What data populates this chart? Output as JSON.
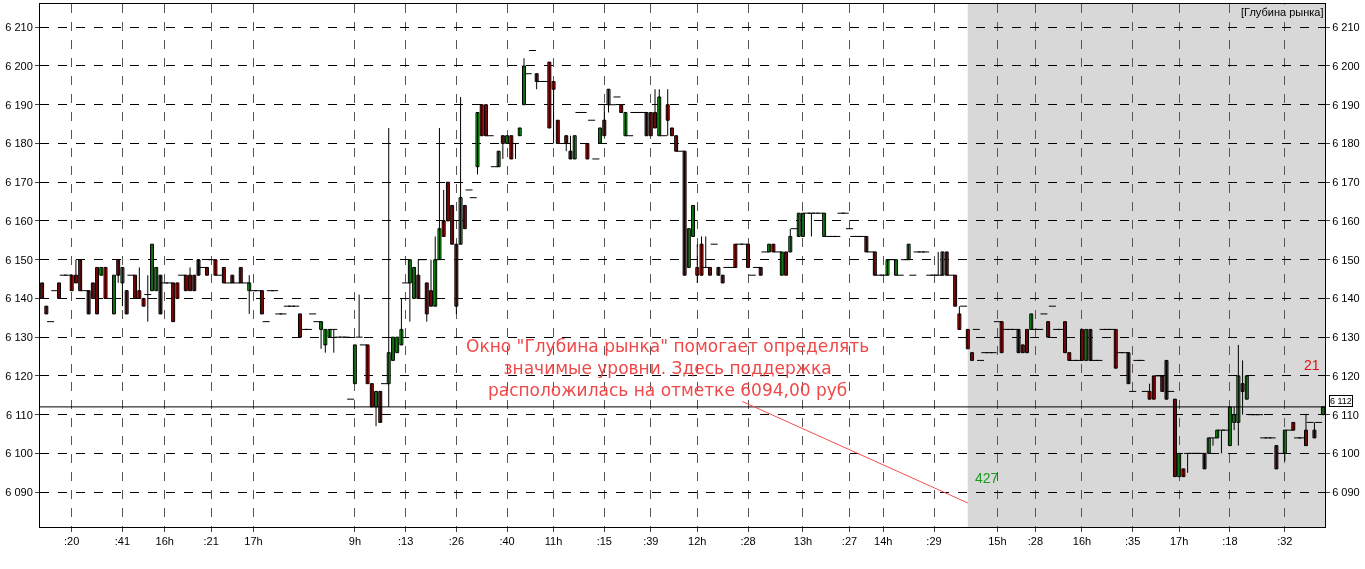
{
  "chart_data": {
    "type": "candlestick",
    "title": "[Глубина рынка]",
    "categories": [
      null,
      null,
      null,
      null,
      null,
      null,
      null,
      ":20",
      null,
      null,
      null,
      null,
      null,
      null,
      null,
      null,
      null,
      null,
      null,
      ":41",
      null,
      null,
      null,
      null,
      null,
      null,
      null,
      null,
      null,
      "16h",
      null,
      null,
      null,
      null,
      null,
      null,
      null,
      null,
      null,
      null,
      ":21",
      null,
      null,
      null,
      null,
      null,
      null,
      null,
      null,
      null,
      "17h",
      null,
      null,
      null,
      null,
      null,
      null,
      null,
      null,
      null,
      null,
      null,
      null,
      null,
      null,
      null,
      null,
      null,
      null,
      null,
      null,
      null,
      null,
      null,
      "9h",
      null,
      null,
      null,
      null,
      null,
      null,
      null,
      null,
      null,
      null,
      null,
      ":13",
      null,
      null,
      null,
      null,
      null,
      null,
      null,
      null,
      null,
      null,
      null,
      ":26",
      null,
      null,
      null,
      null,
      null,
      null,
      null,
      null,
      null,
      null,
      null,
      ":40",
      null,
      null,
      null,
      null,
      null,
      null,
      null,
      null,
      null,
      null,
      "11h",
      null,
      null,
      null,
      null,
      null,
      null,
      null,
      null,
      null,
      null,
      null,
      ":15",
      null,
      null,
      null,
      null,
      null,
      null,
      null,
      null,
      null,
      null,
      ":39",
      null,
      null,
      null,
      null,
      null,
      null,
      null,
      null,
      null,
      null,
      "12h",
      null,
      null,
      null,
      null,
      null,
      null,
      null,
      null,
      null,
      null,
      null,
      ":28",
      null,
      null,
      null,
      null,
      null,
      null,
      null,
      null,
      null,
      null,
      null,
      null,
      "13h",
      null,
      null,
      null,
      null,
      null,
      null,
      null,
      null,
      null,
      null,
      ":27",
      null,
      null,
      null,
      null,
      null,
      null,
      null,
      "14h",
      null,
      null,
      null,
      null,
      null,
      null,
      null,
      null,
      null,
      null,
      null,
      ":29",
      null,
      null,
      null,
      null,
      null,
      null,
      null,
      null,
      null,
      null,
      null,
      null,
      null,
      null,
      "15h",
      null,
      null,
      null,
      null,
      null,
      null,
      null,
      null,
      ":28",
      null,
      null,
      null,
      null,
      null,
      null,
      null,
      null,
      null,
      null,
      "16h",
      null,
      null,
      null,
      null,
      null,
      null,
      null,
      null,
      null,
      null,
      null,
      ":35",
      null,
      null,
      null,
      null,
      null,
      null,
      null,
      null,
      null,
      null,
      "17h",
      null,
      null,
      null,
      null,
      null,
      null,
      null,
      null,
      null,
      null,
      null,
      ":18",
      null,
      null,
      null,
      null,
      null,
      null,
      null,
      null,
      null,
      null,
      null,
      null,
      ":32",
      null,
      null,
      null,
      null,
      null,
      null,
      null,
      null,
      null
    ],
    "series": [
      {
        "color": "#000000",
        "ohlc": [
          [
            6144,
            6144,
            6140,
            6140
          ],
          [
            6138,
            6138,
            6136,
            6136
          ],
          [
            6134,
            6134,
            6134,
            6134
          ],
          [
            6142,
            6142,
            6142,
            6142
          ],
          [
            6144,
            6144,
            6140,
            6140
          ],
          [
            6146,
            6146,
            6146,
            6146
          ],
          [
            6146,
            6146,
            6146,
            6146
          ],
          [
            6146,
            6146,
            6142,
            6142
          ],
          [
            6146,
            6150,
            6144,
            6144
          ],
          [
            6150,
            6150,
            6142,
            6142
          ],
          [
            6142,
            6142,
            6142,
            6142
          ],
          [
            6142,
            6142,
            6136,
            6136
          ],
          [
            6144,
            6144,
            6140,
            6140
          ],
          [
            6148,
            6148,
            6136,
            6136
          ],
          [
            6146,
            6148,
            6146,
            6148
          ],
          [
            6148,
            6148,
            6140,
            6140
          ],
          [
            6140,
            6140,
            6140,
            6140
          ],
          [
            6136,
            6146,
            6136,
            6146
          ],
          [
            6150,
            6150,
            6144,
            6146
          ],
          [
            6144,
            6148,
            6138,
            6148
          ],
          [
            6142,
            6142,
            6136,
            6136
          ],
          [
            6146,
            6146,
            6146,
            6146
          ],
          [
            6146,
            6146,
            6140,
            6140
          ],
          [
            6142,
            6148,
            6140,
            6140
          ],
          [
            6140,
            6140,
            6138,
            6138
          ],
          [
            6141,
            6146,
            6134,
            6141
          ],
          [
            6142,
            6154,
            6142,
            6154
          ],
          [
            6142,
            6148,
            6142,
            6148
          ],
          [
            6146,
            6146,
            6136,
            6136
          ],
          [
            6144,
            6144,
            6144,
            6144
          ],
          [
            6144,
            6144,
            6144,
            6144
          ],
          [
            6144,
            6144,
            6134,
            6134
          ],
          [
            6144,
            6144,
            6140,
            6140
          ],
          [
            6146,
            6146,
            6146,
            6146
          ],
          [
            6146,
            6146,
            6142,
            6142
          ],
          [
            6146,
            6148,
            6142,
            6142
          ],
          [
            6146,
            6146,
            6142,
            6142
          ],
          [
            6150,
            6150,
            6146,
            6146
          ],
          [
            6148,
            6148,
            6148,
            6148
          ],
          [
            6148,
            6148,
            6146,
            6146
          ],
          [
            6150,
            6150,
            6150,
            6150
          ],
          [
            6150,
            6150,
            6146,
            6146
          ],
          [
            6146,
            6146,
            6146,
            6146
          ],
          [
            6148,
            6148,
            6144,
            6144
          ],
          [
            6144,
            6144,
            6144,
            6144
          ],
          [
            6146,
            6146,
            6144,
            6144
          ],
          [
            6144,
            6144,
            6144,
            6144
          ],
          [
            6148,
            6148,
            6144,
            6144
          ],
          [
            6144,
            6144,
            6144,
            6144
          ],
          [
            6142,
            6146,
            6136,
            6144
          ],
          [
            6142,
            6142,
            6142,
            6142
          ],
          [
            6142,
            6142,
            6142,
            6142
          ],
          [
            6142,
            6142,
            6136,
            6136
          ],
          [
            6134,
            6134,
            6134,
            6134
          ],
          [
            6142,
            6142,
            6142,
            6142
          ],
          [
            6142,
            6142,
            6142,
            6142
          ],
          [
            6136,
            6136,
            6136,
            6136
          ],
          [
            6136,
            6136,
            6136,
            6136
          ],
          [
            6138,
            6138,
            6138,
            6138
          ],
          [
            6138,
            6138,
            6138,
            6138
          ],
          [
            6138,
            6138,
            6138,
            6138
          ],
          [
            6136,
            6136,
            6130,
            6130
          ],
          [
            6132,
            6132,
            6132,
            6132
          ],
          [
            6132,
            6132,
            6132,
            6132
          ],
          [
            6136,
            6136,
            6136,
            6136
          ],
          [
            6134,
            6134,
            6134,
            6134
          ],
          [
            6132,
            6134,
            6127,
            6134
          ],
          [
            6128,
            6132,
            6126,
            6132
          ],
          [
            6130,
            6132,
            6130,
            6132
          ],
          [
            6132,
            6132,
            6126,
            6132
          ],
          [
            6130,
            6130,
            6130,
            6130
          ],
          [
            6130,
            6130,
            6130,
            6130
          ],
          [
            6130,
            6130,
            6130,
            6130
          ],
          [
            6114,
            6114,
            6114,
            6114
          ],
          [
            6118,
            6128,
            6118,
            6128
          ],
          [
            6130,
            6141,
            6130,
            6130
          ],
          [
            6128,
            6128,
            6128,
            6128
          ],
          [
            6128,
            6128,
            6118,
            6118
          ],
          [
            6118,
            6118,
            6112,
            6112
          ],
          [
            6112,
            6116,
            6107,
            6116
          ],
          [
            6116,
            6116,
            6108,
            6108
          ],
          [
            6118,
            6118,
            6118,
            6118
          ],
          [
            6118,
            6184,
            6112,
            6126
          ],
          [
            6124,
            6130,
            6124,
            6130
          ],
          [
            6126,
            6130,
            6126,
            6130
          ],
          [
            6128,
            6140,
            6128,
            6132
          ],
          [
            6144,
            6144,
            6144,
            6144
          ],
          [
            6144,
            6150,
            6134,
            6150
          ],
          [
            6140,
            6148,
            6140,
            6148
          ],
          [
            6146,
            6150,
            6140,
            6140
          ],
          [
            6150,
            6150,
            6150,
            6150
          ],
          [
            6144,
            6144,
            6134,
            6136
          ],
          [
            6142,
            6150,
            6138,
            6138
          ],
          [
            6138,
            6156,
            6138,
            6150
          ],
          [
            6150,
            6184,
            6150,
            6158
          ],
          [
            6160,
            6168,
            6156,
            6156
          ],
          [
            6170,
            6170,
            6160,
            6160
          ],
          [
            6164,
            6164,
            6154,
            6154
          ],
          [
            6154,
            6154,
            6136,
            6138
          ],
          [
            6154,
            6192,
            6154,
            6166
          ],
          [
            6164,
            6164,
            6158,
            6158
          ],
          [
            6168,
            6168,
            6168,
            6168
          ],
          [
            6166,
            6166,
            6166,
            6166
          ],
          [
            6174,
            6188,
            6172,
            6188
          ],
          [
            6190,
            6190,
            6182,
            6182
          ],
          [
            6190,
            6190,
            6182,
            6182
          ],
          [
            6182,
            6182,
            6182,
            6182
          ],
          [
            6174,
            6174,
            6174,
            6174
          ],
          [
            6174,
            6178,
            6174,
            6178
          ],
          [
            6182,
            6182,
            6176,
            6180
          ],
          [
            6180,
            6182,
            6180,
            6182
          ],
          [
            6182,
            6182,
            6176,
            6176
          ],
          [
            6180,
            6180,
            6176,
            6180
          ],
          [
            6182,
            6184,
            6182,
            6184
          ],
          [
            6190,
            6202,
            6190,
            6200
          ],
          [
            6198,
            6198,
            6198,
            6198
          ],
          [
            6204,
            6204,
            6204,
            6204
          ],
          [
            6198,
            6198,
            6194,
            6196
          ],
          [
            6196,
            6196,
            6196,
            6196
          ],
          [
            6196,
            6196,
            6196,
            6196
          ],
          [
            6201,
            6201,
            6184,
            6184
          ],
          [
            6196,
            6196,
            6180,
            6194
          ],
          [
            6186,
            6186,
            6180,
            6180
          ],
          [
            6180,
            6180,
            6180,
            6180
          ],
          [
            6182,
            6182,
            6178,
            6180
          ],
          [
            6178,
            6182,
            6176,
            6176
          ],
          [
            6176,
            6182,
            6176,
            6182
          ],
          [
            6188,
            6188,
            6188,
            6188
          ],
          [
            6188,
            6188,
            6188,
            6188
          ],
          [
            6180,
            6180,
            6176,
            6176
          ],
          [
            6186,
            6186,
            6186,
            6186
          ],
          [
            6176,
            6176,
            6176,
            6176
          ],
          [
            6180,
            6184,
            6180,
            6184
          ],
          [
            6186,
            6190,
            6182,
            6182
          ],
          [
            6190,
            6194,
            6188,
            6194
          ],
          [
            6190,
            6190,
            6190,
            6190
          ],
          [
            6192,
            6192,
            6192,
            6192
          ],
          [
            6190,
            6190,
            6188,
            6188
          ],
          [
            6182,
            6188,
            6182,
            6188
          ],
          [
            6182,
            6182,
            6182,
            6182
          ],
          [
            6188,
            6188,
            6188,
            6188
          ],
          [
            6188,
            6188,
            6188,
            6188
          ],
          [
            6188,
            6188,
            6188,
            6188
          ],
          [
            6188,
            6188,
            6182,
            6182
          ],
          [
            6188,
            6188,
            6182,
            6182
          ],
          [
            6188,
            6194,
            6184,
            6184
          ],
          [
            6182,
            6194,
            6182,
            6192
          ],
          [
            6182,
            6182,
            6182,
            6182
          ],
          [
            6190,
            6194,
            6182,
            6186
          ],
          [
            6184,
            6184,
            6182,
            6182
          ],
          [
            6182,
            6182,
            6178,
            6178
          ],
          [
            6178,
            6178,
            6178,
            6178
          ],
          [
            6178,
            6178,
            6146,
            6146
          ],
          [
            6148,
            6158,
            6148,
            6158
          ],
          [
            6156,
            6164,
            6156,
            6164
          ],
          [
            6148,
            6154,
            6144,
            6146
          ],
          [
            6154,
            6156,
            6146,
            6146
          ],
          [
            6148,
            6156,
            6148,
            6148
          ],
          [
            6148,
            6148,
            6146,
            6146
          ],
          [
            6154,
            6154,
            6154,
            6154
          ],
          [
            6148,
            6148,
            6146,
            6146
          ],
          [
            6146,
            6146,
            6144,
            6144
          ],
          [
            6148,
            6148,
            6148,
            6148
          ],
          [
            6148,
            6148,
            6148,
            6148
          ],
          [
            6154,
            6154,
            6148,
            6148
          ],
          [
            6154,
            6154,
            6154,
            6154
          ],
          [
            6154,
            6154,
            6154,
            6154
          ],
          [
            6154,
            6154,
            6148,
            6148
          ],
          [
            6146,
            6146,
            6146,
            6146
          ],
          [
            6148,
            6148,
            6148,
            6148
          ],
          [
            6148,
            6148,
            6146,
            6146
          ],
          [
            6152,
            6152,
            6152,
            6152
          ],
          [
            6152,
            6154,
            6152,
            6154
          ],
          [
            6154,
            6154,
            6152,
            6152
          ],
          [
            6152,
            6152,
            6152,
            6152
          ],
          [
            6146,
            6152,
            6146,
            6152
          ],
          [
            6152,
            6152,
            6146,
            6146
          ],
          [
            6152,
            6158,
            6152,
            6156
          ],
          [
            6158,
            6158,
            6158,
            6158
          ],
          [
            6156,
            6162,
            6156,
            6162
          ],
          [
            6156,
            6162,
            6156,
            6162
          ],
          [
            6162,
            6162,
            6162,
            6162
          ],
          [
            6162,
            6162,
            6156,
            6162
          ],
          [
            6162,
            6162,
            6162,
            6162
          ],
          [
            6162,
            6162,
            6162,
            6162
          ],
          [
            6156,
            6162,
            6156,
            6162
          ],
          [
            6156,
            6156,
            6156,
            6156
          ],
          [
            6156,
            6156,
            6156,
            6156
          ],
          [
            6156,
            6156,
            6156,
            6156
          ],
          [
            6162,
            6162,
            6162,
            6162
          ],
          [
            6162,
            6162,
            6162,
            6162
          ],
          [
            6158,
            6158,
            6158,
            6158
          ],
          [
            6156,
            6156,
            6156,
            6156
          ],
          [
            6156,
            6156,
            6156,
            6156
          ],
          [
            6156,
            6156,
            6156,
            6156
          ],
          [
            6156,
            6156,
            6152,
            6152
          ],
          [
            6152,
            6152,
            6152,
            6152
          ],
          [
            6152,
            6152,
            6146,
            6146
          ],
          [
            6146,
            6146,
            6146,
            6146
          ],
          [
            6146,
            6146,
            6146,
            6146
          ],
          [
            6146,
            6150,
            6146,
            6150
          ],
          [
            6150,
            6150,
            6150,
            6150
          ],
          [
            6146,
            6150,
            6146,
            6150
          ],
          [
            6146,
            6146,
            6146,
            6146
          ],
          [
            6150,
            6150,
            6150,
            6150
          ],
          [
            6150,
            6154,
            6150,
            6154
          ],
          [
            6146,
            6146,
            6146,
            6146
          ],
          [
            6152,
            6152,
            6152,
            6152
          ],
          [
            6152,
            6152,
            6152,
            6152
          ],
          [
            6152,
            6152,
            6152,
            6152
          ],
          [
            6146,
            6146,
            6146,
            6146
          ],
          [
            6146,
            6146,
            6146,
            6146
          ],
          [
            6146,
            6152,
            6146,
            6146
          ],
          [
            6146,
            6152,
            6146,
            6152
          ],
          [
            6152,
            6152,
            6146,
            6146
          ],
          [
            6146,
            6146,
            6146,
            6146
          ],
          [
            6146,
            6146,
            6138,
            6138
          ],
          [
            6136,
            6138,
            6132,
            6132
          ],
          [
            6138,
            6138,
            6138,
            6138
          ],
          [
            6132,
            6132,
            6127,
            6127
          ],
          [
            6126,
            6126,
            6124,
            6124
          ],
          [
            6132,
            6132,
            6132,
            6132
          ],
          [
            6124,
            6124,
            6124,
            6124
          ],
          [
            6126,
            6126,
            6126,
            6126
          ],
          [
            6126,
            6126,
            6126,
            6126
          ],
          [
            6126,
            6126,
            6126,
            6126
          ],
          [
            6134,
            6134,
            6134,
            6134
          ],
          [
            6134,
            6134,
            6126,
            6126
          ],
          [
            6132,
            6132,
            6132,
            6132
          ],
          [
            6132,
            6132,
            6132,
            6132
          ],
          [
            6132,
            6132,
            6132,
            6132
          ],
          [
            6132,
            6132,
            6126,
            6126
          ],
          [
            6128,
            6128,
            6126,
            6126
          ],
          [
            6132,
            6132,
            6126,
            6126
          ],
          [
            6132,
            6136,
            6132,
            6136
          ],
          [
            6132,
            6132,
            6132,
            6132
          ],
          [
            6132,
            6132,
            6132,
            6132
          ],
          [
            6136,
            6136,
            6136,
            6136
          ],
          [
            6134,
            6134,
            6130,
            6130
          ],
          [
            6138,
            6138,
            6138,
            6138
          ],
          [
            6132,
            6132,
            6132,
            6132
          ],
          [
            6132,
            6132,
            6132,
            6132
          ],
          [
            6134,
            6134,
            6126,
            6126
          ],
          [
            6126,
            6126,
            6124,
            6124
          ],
          [
            6124,
            6124,
            6124,
            6124
          ],
          [
            6124,
            6124,
            6124,
            6124
          ],
          [
            6132,
            6132,
            6124,
            6124
          ],
          [
            6124,
            6132,
            6124,
            6132
          ],
          [
            6132,
            6132,
            6124,
            6124
          ],
          [
            6124,
            6124,
            6124,
            6124
          ],
          [
            6124,
            6124,
            6124,
            6124
          ],
          [
            6132,
            6132,
            6132,
            6132
          ],
          [
            6132,
            6132,
            6132,
            6132
          ],
          [
            6132,
            6132,
            6132,
            6132
          ],
          [
            6132,
            6132,
            6122,
            6122
          ],
          [
            6126,
            6126,
            6126,
            6126
          ],
          [
            6126,
            6126,
            6126,
            6126
          ],
          [
            6126,
            6126,
            6118,
            6118
          ],
          [
            6116,
            6116,
            6116,
            6116
          ],
          [
            6124,
            6124,
            6124,
            6124
          ],
          [
            6124,
            6124,
            6124,
            6124
          ],
          [
            6116,
            6116,
            6116,
            6116
          ],
          [
            6116,
            6118,
            6114,
            6114
          ],
          [
            6120,
            6120,
            6114,
            6114
          ],
          [
            6120,
            6120,
            6120,
            6120
          ],
          [
            6120,
            6120,
            6116,
            6116
          ],
          [
            6124,
            6124,
            6114,
            6114
          ],
          [
            6116,
            6116,
            6116,
            6116
          ],
          [
            6114,
            6114,
            6094,
            6094
          ],
          [
            6094,
            6100,
            6094,
            6100
          ],
          [
            6096,
            6096,
            6094,
            6094
          ],
          [
            6100,
            6100,
            6095,
            6100
          ],
          [
            6100,
            6100,
            6100,
            6100
          ],
          [
            6100,
            6100,
            6100,
            6100
          ],
          [
            6100,
            6100,
            6100,
            6100
          ],
          [
            6100,
            6100,
            6096,
            6096
          ],
          [
            6100,
            6104,
            6100,
            6104
          ],
          [
            6104,
            6104,
            6102,
            6104
          ],
          [
            6104,
            6106,
            6104,
            6106
          ],
          [
            6106,
            6106,
            6100,
            6106
          ],
          [
            6106,
            6106,
            6106,
            6106
          ],
          [
            6102,
            6112,
            6102,
            6112
          ],
          [
            6108,
            6112,
            6106,
            6110
          ],
          [
            6108,
            6128,
            6102,
            6120
          ],
          [
            6118,
            6124,
            6110,
            6116
          ],
          [
            6114,
            6120,
            6114,
            6120
          ],
          [
            6110,
            6110,
            6110,
            6110
          ],
          [
            6110,
            6110,
            6110,
            6110
          ],
          [
            6110,
            6110,
            6110,
            6110
          ],
          [
            6104,
            6104,
            6104,
            6104
          ],
          [
            6104,
            6104,
            6104,
            6104
          ],
          [
            6104,
            6104,
            6104,
            6104
          ],
          [
            6102,
            6102,
            6096,
            6096
          ],
          [
            6100,
            6100,
            6100,
            6100
          ],
          [
            6100,
            6106,
            6098,
            6106
          ],
          [
            6106,
            6106,
            6106,
            6106
          ],
          [
            6108,
            6108,
            6106,
            6106
          ],
          [
            6104,
            6104,
            6104,
            6104
          ],
          [
            6104,
            6104,
            6104,
            6104
          ],
          [
            6106,
            6110,
            6102,
            6102
          ],
          [
            6108,
            6108,
            6108,
            6108
          ],
          [
            6106,
            6108,
            6104,
            6104
          ],
          [
            6108,
            6108,
            6108,
            6108
          ],
          [
            6110,
            6112,
            6110,
            6112
          ]
        ]
      }
    ],
    "ylim": [
      6081,
      6216
    ],
    "yticks": [
      {
        "value": 6090,
        "label": "6 090"
      },
      {
        "value": 6100,
        "label": "6 100"
      },
      {
        "value": 6110,
        "label": "6 110"
      },
      {
        "value": 6120,
        "label": "6 120"
      },
      {
        "value": 6130,
        "label": "6 130"
      },
      {
        "value": 6140,
        "label": "6 140"
      },
      {
        "value": 6150,
        "label": "6 150"
      },
      {
        "value": 6160,
        "label": "6 160"
      },
      {
        "value": 6170,
        "label": "6 170"
      },
      {
        "value": 6180,
        "label": "6 180"
      },
      {
        "value": 6190,
        "label": "6 190"
      },
      {
        "value": 6200,
        "label": "6 200"
      },
      {
        "value": 6210,
        "label": "6 210"
      }
    ],
    "y2lim": [
      6081,
      6216
    ],
    "y2ticks": [
      {
        "value": 6090,
        "label": "6 090"
      },
      {
        "value": 6100,
        "label": "6 100"
      },
      {
        "value": 6110,
        "label": "6 110"
      },
      {
        "value": 6120,
        "label": "6 120"
      },
      {
        "value": 6130,
        "label": "6 130"
      },
      {
        "value": 6140,
        "label": "6 140"
      },
      {
        "value": 6150,
        "label": "6 150"
      },
      {
        "value": 6160,
        "label": "6 160"
      },
      {
        "value": 6170,
        "label": "6 170"
      },
      {
        "value": 6180,
        "label": "6 180"
      },
      {
        "value": 6190,
        "label": "6 190"
      },
      {
        "value": 6200,
        "label": "6 200"
      },
      {
        "value": 6210,
        "label": "6 210"
      }
    ],
    "grid": true,
    "ref_lines": [
      {
        "axis": "y",
        "value": 6112,
        "label": "6 112",
        "color": "#000000"
      }
    ],
    "annotations": [
      "Окно \"Глубина рынка\" помогает определять\nзначимые уровни. Здесь поддержка\nрасположилась на отметке 6094,00 руб",
      "427",
      "21"
    ]
  }
}
